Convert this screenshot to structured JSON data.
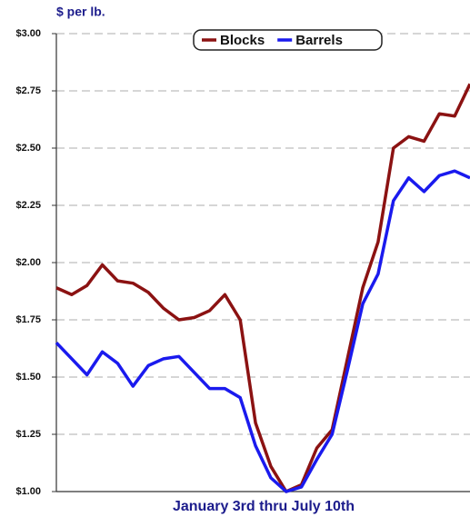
{
  "chart_data": {
    "type": "line",
    "y_axis_label": "$ per lb.",
    "x_axis_label": "January 3rd thru July 10th",
    "categories": [
      null,
      null,
      null,
      null,
      null,
      null,
      null,
      null,
      null,
      null,
      null,
      null,
      null,
      null,
      null,
      null,
      null,
      null,
      null,
      null,
      null,
      null,
      null,
      null,
      null,
      null,
      null,
      null
    ],
    "series": [
      {
        "name": "Blocks",
        "color": "#8b1212",
        "values": [
          1.89,
          1.86,
          1.9,
          1.99,
          1.92,
          1.91,
          1.87,
          1.8,
          1.75,
          1.76,
          1.79,
          1.86,
          1.75,
          1.3,
          1.11,
          1.0,
          1.03,
          1.19,
          1.27,
          1.58,
          1.89,
          2.09,
          2.5,
          2.55,
          2.53,
          2.65,
          2.64,
          2.78
        ]
      },
      {
        "name": "Barrels",
        "color": "#1a1aee",
        "values": [
          1.65,
          1.58,
          1.51,
          1.61,
          1.56,
          1.46,
          1.55,
          1.58,
          1.59,
          1.52,
          1.45,
          1.45,
          1.41,
          1.2,
          1.06,
          1.0,
          1.02,
          1.14,
          1.25,
          1.53,
          1.82,
          1.95,
          2.27,
          2.37,
          2.31,
          2.38,
          2.4,
          2.37
        ]
      }
    ],
    "ylim": [
      1.0,
      3.0
    ],
    "yticks": [
      {
        "value": 1.0,
        "label": "$1.00"
      },
      {
        "value": 1.25,
        "label": "$1.25"
      },
      {
        "value": 1.5,
        "label": "$1.50"
      },
      {
        "value": 1.75,
        "label": "$1.75"
      },
      {
        "value": 2.0,
        "label": "$2.00"
      },
      {
        "value": 2.25,
        "label": "$2.25"
      },
      {
        "value": 2.5,
        "label": "$2.50"
      },
      {
        "value": 2.75,
        "label": "$2.75"
      },
      {
        "value": 3.0,
        "label": "$3.00"
      }
    ],
    "grid": true,
    "legend": "top"
  }
}
